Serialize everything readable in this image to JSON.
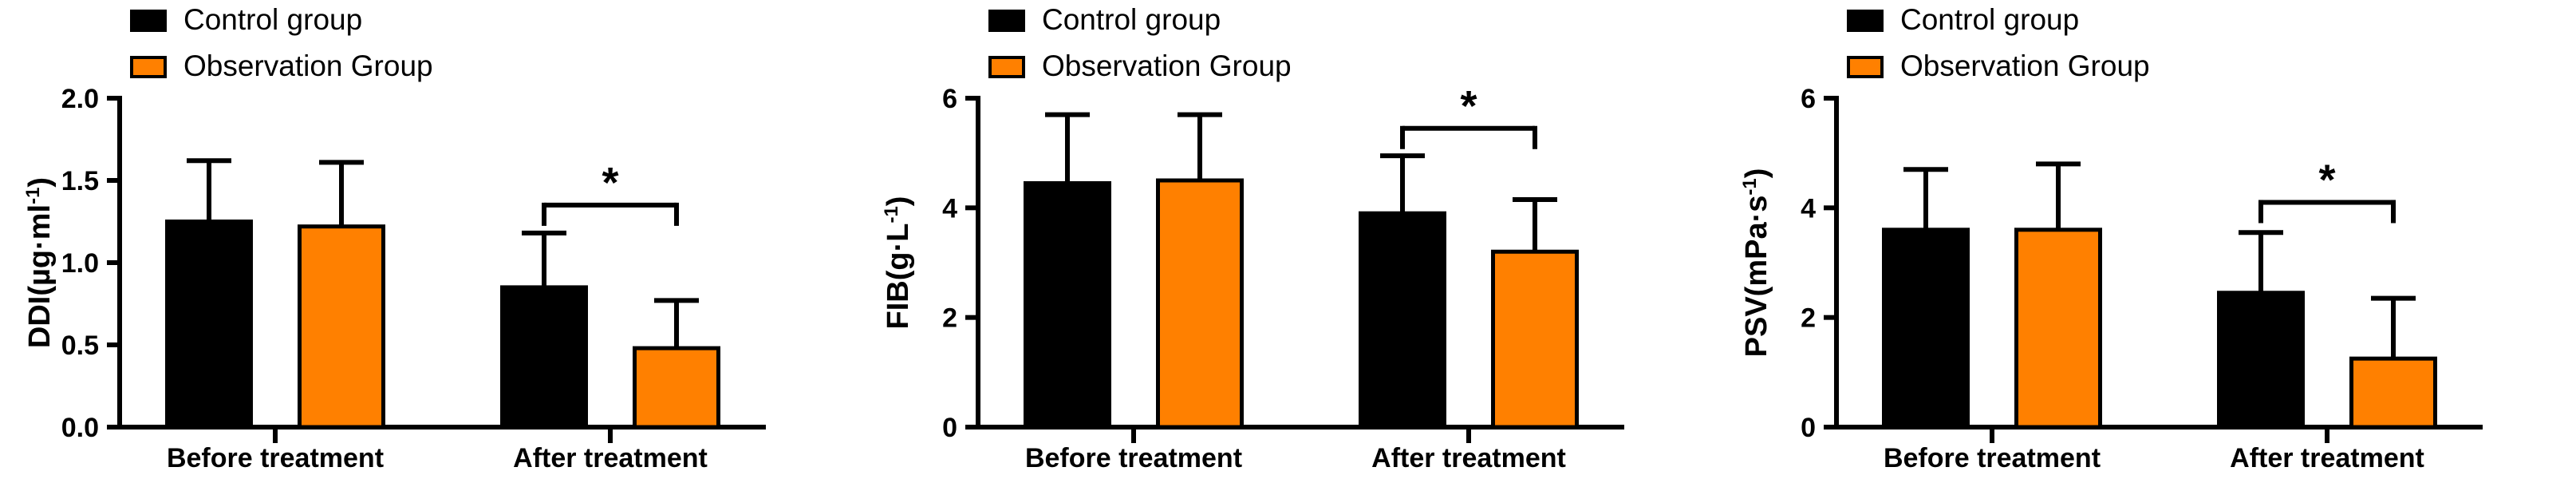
{
  "figure": {
    "background": "#FFFFFF",
    "significance_label": "*"
  },
  "legend": {
    "items": [
      {
        "label": "Control group",
        "color": "#000000",
        "border": "#000000"
      },
      {
        "label": "Observation Group",
        "color": "#FF8000",
        "border": "#000000"
      }
    ]
  },
  "colors": {
    "control": "#000000",
    "observation": "#FF8000",
    "axis": "#000000",
    "text": "#000000"
  },
  "chart_data": [
    {
      "type": "bar",
      "title": "",
      "xlabel": "",
      "ylabel": "DDI(µg·ml⁻¹)",
      "ylabel_parts": {
        "pre": "DDI(µg·ml",
        "sup": "-1",
        "post": ")"
      },
      "categories": [
        "Before treatment",
        "After treatment"
      ],
      "series": [
        {
          "name": "Control group",
          "color": "#000000",
          "values": [
            1.25,
            0.85
          ],
          "errors_up": [
            0.37,
            0.33
          ]
        },
        {
          "name": "Observation Group",
          "color": "#FF8000",
          "values": [
            1.22,
            0.48
          ],
          "errors_up": [
            0.39,
            0.29
          ]
        }
      ],
      "ylim": [
        0,
        2.0
      ],
      "yticks": [
        0,
        0.5,
        1.0,
        1.5,
        2.0
      ],
      "ytick_labels": [
        "0.0",
        "0.5",
        "1.0",
        "1.5",
        "2.0"
      ],
      "grid": false,
      "legend_position": "top-left-inset",
      "error_bars": "upper-only",
      "significance": {
        "category_index": 1,
        "label": "*",
        "bracket_y": 1.35
      }
    },
    {
      "type": "bar",
      "title": "",
      "xlabel": "",
      "ylabel": "FIB(g·L⁻¹)",
      "ylabel_parts": {
        "pre": "FIB(g·L",
        "sup": "-1",
        "post": ")"
      },
      "categories": [
        "Before treatment",
        "After treatment"
      ],
      "series": [
        {
          "name": "Control group",
          "color": "#000000",
          "values": [
            4.45,
            3.9
          ],
          "errors_up": [
            1.25,
            1.05
          ]
        },
        {
          "name": "Observation Group",
          "color": "#FF8000",
          "values": [
            4.5,
            3.2
          ],
          "errors_up": [
            1.2,
            0.95
          ]
        }
      ],
      "ylim": [
        0,
        6
      ],
      "yticks": [
        0,
        2,
        4,
        6
      ],
      "ytick_labels": [
        "0",
        "2",
        "4",
        "6"
      ],
      "grid": false,
      "legend_position": "top-left-inset",
      "error_bars": "upper-only",
      "significance": {
        "category_index": 1,
        "label": "*",
        "bracket_y": 5.45
      }
    },
    {
      "type": "bar",
      "title": "",
      "xlabel": "",
      "ylabel": "PSV(mPa·s⁻¹)",
      "ylabel_parts": {
        "pre": "PSV(mPa·s",
        "sup": "-1",
        "post": ")"
      },
      "categories": [
        "Before treatment",
        "After treatment"
      ],
      "series": [
        {
          "name": "Control group",
          "color": "#000000",
          "values": [
            3.6,
            2.45
          ],
          "errors_up": [
            1.1,
            1.1
          ]
        },
        {
          "name": "Observation Group",
          "color": "#FF8000",
          "values": [
            3.6,
            1.25
          ],
          "errors_up": [
            1.2,
            1.1
          ]
        }
      ],
      "ylim": [
        0,
        6
      ],
      "yticks": [
        0,
        2,
        4,
        6
      ],
      "ytick_labels": [
        "0",
        "2",
        "4",
        "6"
      ],
      "grid": false,
      "legend_position": "top-left-inset",
      "error_bars": "upper-only",
      "significance": {
        "category_index": 1,
        "label": "*",
        "bracket_y": 4.1
      }
    }
  ]
}
